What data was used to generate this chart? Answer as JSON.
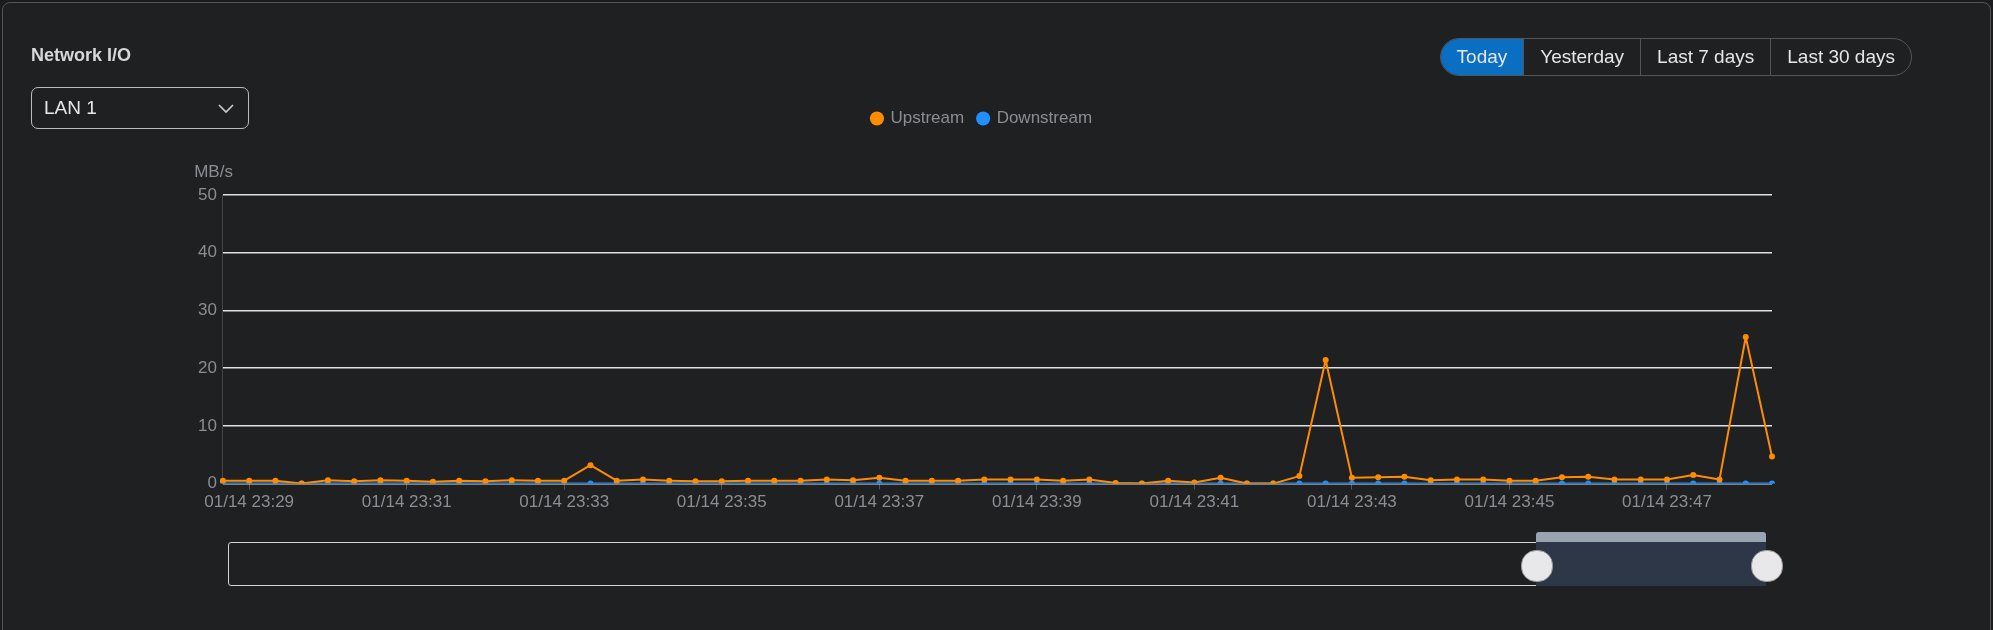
{
  "chart_data": {
    "type": "line",
    "title": "Network I/O",
    "ylabel": "MB/s",
    "annotations": [
      "LAN 1",
      "Today",
      "Yesterday",
      "Last 7 days",
      "Last 30 days"
    ],
    "categories": [
      null,
      "01/14 23:29",
      null,
      null,
      null,
      null,
      null,
      "01/14 23:31",
      null,
      null,
      null,
      null,
      null,
      "01/14 23:33",
      null,
      null,
      null,
      null,
      null,
      "01/14 23:35",
      null,
      null,
      null,
      null,
      null,
      "01/14 23:37",
      null,
      null,
      null,
      null,
      null,
      "01/14 23:39",
      null,
      null,
      null,
      null,
      null,
      "01/14 23:41",
      null,
      null,
      null,
      null,
      null,
      "01/14 23:43",
      null,
      null,
      null,
      null,
      null,
      "01/14 23:45",
      null,
      null,
      null,
      null,
      null,
      "01/14 23:47",
      null,
      null,
      null,
      null
    ],
    "series": [
      {
        "name": "Upstream",
        "color": "#ff8c00",
        "values": [
          0.5,
          0.5,
          0.5,
          0,
          0.6,
          0.4,
          0.6,
          0.5,
          0.3,
          0.5,
          0.4,
          0.6,
          0.5,
          0.5,
          3.2,
          0.5,
          0.7,
          0.5,
          0.4,
          0.4,
          0.5,
          0.5,
          0.5,
          0.7,
          0.6,
          1.0,
          0.5,
          0.5,
          0.5,
          0.7,
          0.7,
          0.7,
          0.5,
          0.7,
          0.1,
          0,
          0.5,
          0.2,
          1.0,
          0,
          0,
          1.3,
          21.4,
          1.0,
          1.1,
          1.2,
          0.6,
          0.7,
          0.7,
          0.5,
          0.5,
          1.1,
          1.2,
          0.7,
          0.7,
          0.7,
          1.5,
          0.7,
          25.4,
          4.7
        ]
      },
      {
        "name": "Downstream",
        "color": "#1e90ff",
        "values": [
          0,
          0,
          0,
          0,
          0,
          0,
          0,
          0,
          0,
          0,
          0,
          0,
          0,
          0,
          0,
          0,
          0,
          0,
          0,
          0,
          0,
          0,
          0,
          0,
          0,
          0,
          0,
          0,
          0,
          0,
          0,
          0,
          0,
          0,
          0,
          0,
          0,
          0,
          0,
          0,
          0,
          0,
          0,
          0,
          0,
          0,
          0,
          0,
          0,
          0,
          0,
          0,
          0,
          0,
          0,
          0,
          0,
          0,
          0,
          0
        ]
      }
    ],
    "ylim": [
      0,
      50
    ],
    "yticks": [
      0,
      10,
      20,
      30,
      40,
      50
    ],
    "grid": "y",
    "legend": "top",
    "marker": "circle",
    "line_style": "solid"
  }
}
